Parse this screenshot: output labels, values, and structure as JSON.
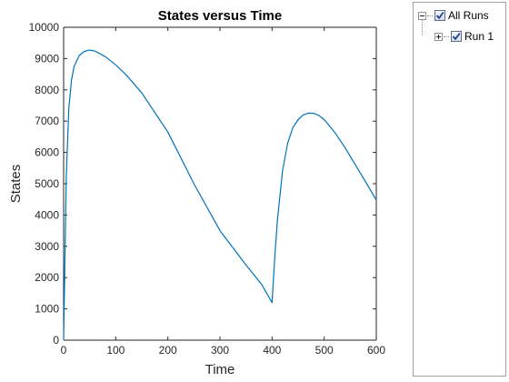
{
  "chart_data": {
    "type": "line",
    "title": "States versus Time",
    "xlabel": "Time",
    "ylabel": "States",
    "xlim": [
      0,
      600
    ],
    "ylim": [
      0,
      10000
    ],
    "xticks": [
      0,
      100,
      200,
      300,
      400,
      500,
      600
    ],
    "yticks": [
      0,
      1000,
      2000,
      3000,
      4000,
      5000,
      6000,
      7000,
      8000,
      9000,
      10000
    ],
    "grid": false,
    "series": [
      {
        "color": "#0072bd",
        "x": [
          0,
          5,
          10,
          15,
          20,
          30,
          40,
          50,
          60,
          80,
          100,
          120,
          150,
          200,
          250,
          300,
          350,
          380,
          400,
          405,
          410,
          420,
          430,
          440,
          450,
          460,
          470,
          480,
          490,
          500,
          520,
          540,
          560,
          580,
          600
        ],
        "y": [
          0,
          5200,
          7400,
          8300,
          8750,
          9100,
          9230,
          9270,
          9240,
          9060,
          8800,
          8480,
          7900,
          6650,
          5000,
          3500,
          2400,
          1780,
          1200,
          2600,
          3800,
          5400,
          6300,
          6800,
          7050,
          7200,
          7260,
          7250,
          7180,
          7050,
          6650,
          6150,
          5600,
          5050,
          4480
        ]
      }
    ]
  },
  "tree": {
    "root_label": "All Runs",
    "child_label": "Run 1",
    "root_checked": true,
    "child_checked": true
  }
}
